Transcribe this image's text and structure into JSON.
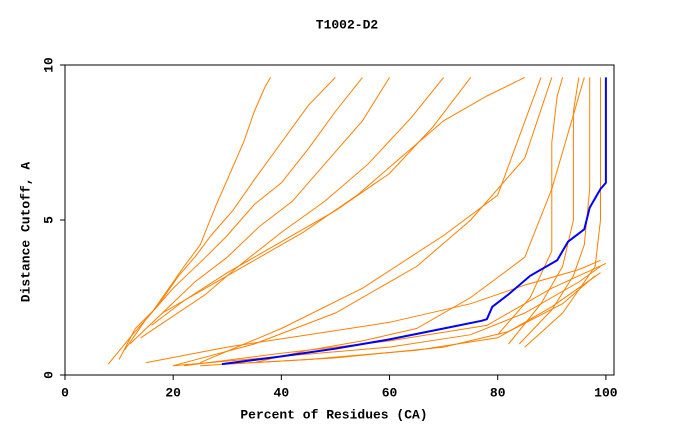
{
  "chart_data": {
    "type": "line",
    "title": "T1002-D2",
    "x_label": "Percent of Residues (CA)",
    "y_label": "Distance Cutoff, A",
    "xlim": [
      0,
      101.5
    ],
    "ylim": [
      0,
      10
    ],
    "xticks": [
      0,
      20,
      40,
      60,
      80,
      100
    ],
    "yticks": [
      0,
      5,
      10
    ],
    "grid": false,
    "series": [
      {
        "color": "#ff8000",
        "x": [
          8,
          12,
          16,
          20,
          22,
          25,
          28,
          30,
          33,
          35,
          37,
          38
        ],
        "values": [
          0.35,
          1.2,
          2.0,
          3.0,
          3.5,
          4.2,
          5.5,
          6.3,
          7.5,
          8.5,
          9.3,
          9.6
        ]
      },
      {
        "color": "#ff8000",
        "x": [
          10,
          13,
          17,
          21,
          24,
          27,
          31,
          35,
          40,
          45,
          50
        ],
        "values": [
          0.5,
          1.5,
          2.2,
          3.2,
          3.8,
          4.5,
          5.3,
          6.3,
          7.5,
          8.7,
          9.6
        ]
      },
      {
        "color": "#ff8000",
        "x": [
          11,
          15,
          20,
          26,
          30,
          35,
          40,
          45,
          50,
          55
        ],
        "values": [
          0.8,
          1.8,
          2.8,
          3.8,
          4.5,
          5.5,
          6.2,
          7.3,
          8.5,
          9.6
        ]
      },
      {
        "color": "#ff8000",
        "x": [
          12,
          18,
          24,
          30,
          36,
          42,
          48,
          55,
          60
        ],
        "values": [
          1.0,
          2.0,
          3.0,
          3.8,
          4.8,
          5.6,
          6.8,
          8.2,
          9.6
        ]
      },
      {
        "color": "#ff8000",
        "x": [
          14,
          20,
          26,
          32,
          40,
          48,
          56,
          64,
          70
        ],
        "values": [
          1.2,
          1.9,
          2.6,
          3.5,
          4.6,
          5.6,
          6.8,
          8.3,
          9.6
        ]
      },
      {
        "color": "#ff8000",
        "x": [
          16,
          22,
          30,
          40,
          50,
          60,
          68,
          75
        ],
        "values": [
          1.6,
          2.4,
          3.3,
          4.3,
          5.3,
          6.5,
          8.0,
          9.6
        ]
      },
      {
        "color": "#ff8000",
        "x": [
          18,
          26,
          34,
          44,
          54,
          62,
          70,
          78,
          85
        ],
        "values": [
          2.0,
          2.8,
          3.6,
          4.6,
          5.8,
          7.0,
          8.2,
          9.0,
          9.6
        ]
      },
      {
        "color": "#ff8000",
        "x": [
          25,
          40,
          55,
          70,
          80,
          88
        ],
        "values": [
          0.4,
          1.5,
          2.8,
          4.5,
          5.8,
          9.6
        ]
      },
      {
        "color": "#ff8000",
        "x": [
          20,
          35,
          50,
          65,
          75,
          85,
          90
        ],
        "values": [
          0.3,
          1.0,
          2.0,
          3.5,
          5.0,
          7.0,
          9.6
        ]
      },
      {
        "color": "#ff8000",
        "x": [
          35,
          45,
          55,
          65,
          75,
          85,
          90,
          96
        ],
        "values": [
          0.4,
          0.8,
          1.1,
          1.5,
          2.5,
          3.8,
          6.0,
          9.6
        ]
      },
      {
        "color": "#ff8000",
        "x": [
          15,
          30,
          45,
          60,
          75,
          85,
          95,
          99
        ],
        "values": [
          0.4,
          0.9,
          1.3,
          1.7,
          2.3,
          2.9,
          3.4,
          3.7
        ]
      },
      {
        "color": "#ff8000",
        "x": [
          20,
          40,
          60,
          75,
          85,
          95,
          99
        ],
        "values": [
          0.3,
          0.6,
          0.9,
          1.3,
          2.0,
          3.0,
          3.5
        ]
      },
      {
        "color": "#ff8000",
        "x": [
          25,
          45,
          65,
          80,
          90,
          99
        ],
        "values": [
          0.3,
          0.5,
          0.8,
          1.2,
          2.2,
          3.3
        ]
      },
      {
        "color": "#ff8000",
        "x": [
          30,
          50,
          70,
          82,
          92,
          98
        ],
        "values": [
          0.35,
          0.55,
          0.9,
          1.4,
          2.3,
          3.2
        ]
      },
      {
        "color": "#ff8000",
        "x": [
          22,
          40,
          60,
          78,
          90,
          100
        ],
        "values": [
          0.3,
          0.7,
          1.1,
          1.6,
          2.8,
          3.6
        ]
      },
      {
        "color": "#ff8000",
        "x": [
          80,
          86,
          90,
          90,
          91,
          92
        ],
        "values": [
          1.3,
          2.5,
          4.0,
          7.5,
          9.0,
          9.6
        ]
      },
      {
        "color": "#ff8000",
        "x": [
          82,
          88,
          92,
          94,
          94,
          95
        ],
        "values": [
          1.0,
          2.3,
          3.5,
          5.0,
          8.5,
          9.6
        ]
      },
      {
        "color": "#ff8000",
        "x": [
          84,
          90,
          94,
          96,
          97,
          97
        ],
        "values": [
          1.0,
          2.1,
          3.2,
          4.2,
          6.0,
          9.6
        ]
      },
      {
        "color": "#ff8000",
        "x": [
          85,
          92,
          96,
          98,
          99,
          99
        ],
        "values": [
          0.9,
          2.0,
          3.0,
          3.5,
          5.0,
          9.6
        ]
      },
      {
        "color": "#0000ff",
        "x": [
          29,
          40,
          50,
          60,
          70,
          77,
          78,
          79,
          82,
          86,
          91,
          93,
          96,
          97,
          99,
          100,
          100
        ],
        "values": [
          0.35,
          0.6,
          0.85,
          1.15,
          1.5,
          1.75,
          1.8,
          2.2,
          2.6,
          3.2,
          3.7,
          4.3,
          4.7,
          5.4,
          6.0,
          6.2,
          9.6
        ]
      }
    ]
  }
}
